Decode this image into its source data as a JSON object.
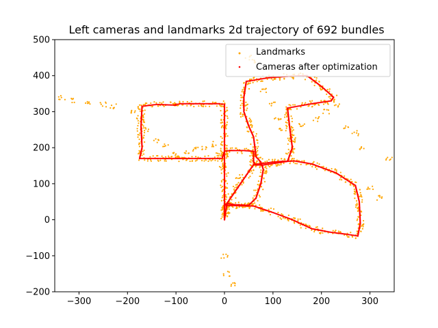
{
  "chart_data": {
    "type": "scatter",
    "title": "Left cameras and landmarks 2d trajectory of 692 bundles",
    "xlabel": "",
    "ylabel": "",
    "xlim": [
      -350,
      350
    ],
    "ylim": [
      -200,
      500
    ],
    "xticks": [
      -300,
      -200,
      -100,
      0,
      100,
      200,
      300
    ],
    "yticks": [
      -200,
      -100,
      0,
      100,
      200,
      300,
      400,
      500
    ],
    "grid": false,
    "legend": {
      "placement": "top-right",
      "entries": [
        "Landmarks",
        "Cameras after optimization"
      ]
    },
    "series": [
      {
        "name": "Landmarks",
        "color": "#ffa500",
        "marker": "dot-cloud-around-path",
        "spread": 8,
        "x": [
          -335,
          -310,
          -280,
          -250,
          -230,
          -190,
          -175,
          -160,
          -140,
          -120,
          -100,
          -95,
          -80,
          -60,
          -40,
          -20,
          -10,
          -5,
          0,
          5,
          15,
          30,
          50,
          60,
          80,
          100,
          110,
          120,
          140,
          160,
          190,
          210,
          230,
          250,
          270,
          285,
          300,
          320,
          340
        ],
        "y": [
          340,
          330,
          325,
          320,
          315,
          300,
          280,
          250,
          220,
          205,
          180,
          175,
          190,
          195,
          200,
          210,
          180,
          150,
          -100,
          -150,
          -180,
          120,
          450,
          440,
          360,
          320,
          280,
          250,
          230,
          260,
          280,
          300,
          320,
          260,
          240,
          200,
          90,
          60,
          170
        ]
      },
      {
        "name": "Cameras after optimization",
        "color": "#ff0000",
        "marker": "dot",
        "x": [
          0,
          0,
          0,
          0,
          0,
          0,
          0,
          0,
          -10,
          -40,
          -70,
          -90,
          -100,
          -100,
          -140,
          -170,
          -172,
          -170,
          -175,
          -120,
          -60,
          -5,
          0,
          10,
          40,
          60,
          60,
          65,
          80,
          100,
          130,
          140,
          135,
          130,
          180,
          220,
          225,
          200,
          170,
          130,
          90,
          45,
          40,
          40,
          50,
          60,
          65,
          75,
          80,
          75,
          65,
          50,
          20,
          5,
          0,
          0,
          60,
          100,
          140,
          180,
          220,
          250,
          275,
          280,
          278,
          270,
          230,
          180,
          145,
          120,
          100,
          60,
          5,
          0
        ],
        "y": [
          0,
          40,
          80,
          120,
          160,
          200,
          260,
          320,
          322,
          322,
          322,
          322,
          320,
          318,
          320,
          315,
          260,
          200,
          170,
          170,
          170,
          170,
          190,
          192,
          192,
          190,
          160,
          152,
          152,
          156,
          162,
          200,
          250,
          310,
          322,
          330,
          340,
          370,
          400,
          398,
          394,
          384,
          340,
          300,
          260,
          230,
          175,
          160,
          140,
          100,
          60,
          40,
          42,
          45,
          40,
          40,
          38,
          20,
          0,
          -25,
          -35,
          -40,
          -45,
          -10,
          50,
          95,
          130,
          155,
          163,
          162,
          160,
          153,
          45,
          0
        ]
      }
    ]
  }
}
